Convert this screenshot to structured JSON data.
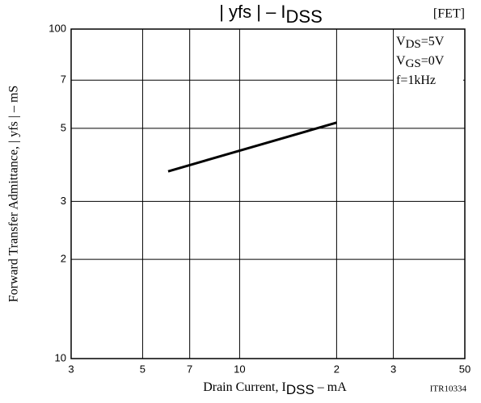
{
  "chart_data": {
    "type": "line",
    "title": [
      "| yfs | – I",
      "DSS"
    ],
    "tag": "[FET]",
    "x_label": [
      "Drain Current, I",
      "DSS",
      " – mA"
    ],
    "y_label": "Forward Transfer Admittance, | yfs | – mS",
    "annotations": [
      [
        "V",
        "DS",
        "=5V"
      ],
      [
        "V",
        "GS",
        "=0V"
      ],
      [
        "f=1kHz"
      ]
    ],
    "code": "ITR10334",
    "x": [
      6,
      20
    ],
    "series": [
      {
        "color": "#000000",
        "values": [
          37,
          52
        ]
      }
    ],
    "log_x": true,
    "log_y": true,
    "grid": true,
    "xlim": [
      3,
      50
    ],
    "ylim": [
      10,
      100
    ],
    "xticks": [
      3,
      5,
      7,
      10,
      {
        "value": 20,
        "label": "2"
      },
      {
        "value": 30,
        "label": "3"
      },
      50.0
    ],
    "yticks": [
      10,
      {
        "value": 20,
        "label": "2"
      },
      {
        "value": 30,
        "label": "3"
      },
      {
        "value": 50,
        "label": "5"
      },
      {
        "value": 70,
        "label": "7"
      },
      100
    ]
  }
}
